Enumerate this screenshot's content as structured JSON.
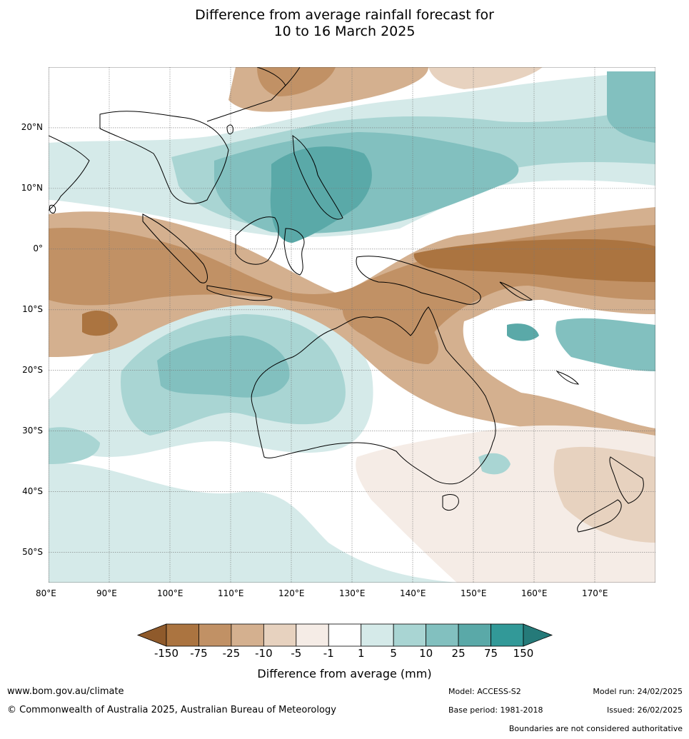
{
  "title": {
    "line1": "Difference from average rainfall forecast for",
    "line2": "10 to 16 March 2025"
  },
  "map": {
    "lon_range": [
      80,
      180
    ],
    "lat_range": [
      -55,
      30
    ],
    "lon_ticks": [
      "80°E",
      "90°E",
      "100°E",
      "110°E",
      "120°E",
      "130°E",
      "140°E",
      "150°E",
      "160°E",
      "170°E"
    ],
    "lat_ticks": [
      "20°N",
      "10°N",
      "0°",
      "10°S",
      "20°S",
      "30°S",
      "40°S",
      "50°S"
    ],
    "grid": true
  },
  "colorbar": {
    "title": "Difference from average (mm)",
    "tick_labels": [
      "-150",
      "-75",
      "-25",
      "-10",
      "-5",
      "-1",
      "1",
      "5",
      "10",
      "25",
      "75",
      "150"
    ],
    "colors": [
      "#8f5a2b",
      "#ab7440",
      "#c19165",
      "#d4b08f",
      "#e7d2bf",
      "#f5ece6",
      "#ffffff",
      "#d5eae9",
      "#a9d5d3",
      "#82c0bf",
      "#5aa9a8",
      "#329998",
      "#257a79"
    ]
  },
  "footer": {
    "website": "www.bom.gov.au/climate",
    "copyright": "© Commonwealth of Australia 2025, Australian Bureau of Meteorology",
    "model": "Model: ACCESS-S2",
    "base_period": "Base period: 1981-2018",
    "model_run": "Model run: 24/02/2025",
    "issued": "Issued: 26/02/2025",
    "disclaimer": "Boundaries are not considered authoritative"
  }
}
